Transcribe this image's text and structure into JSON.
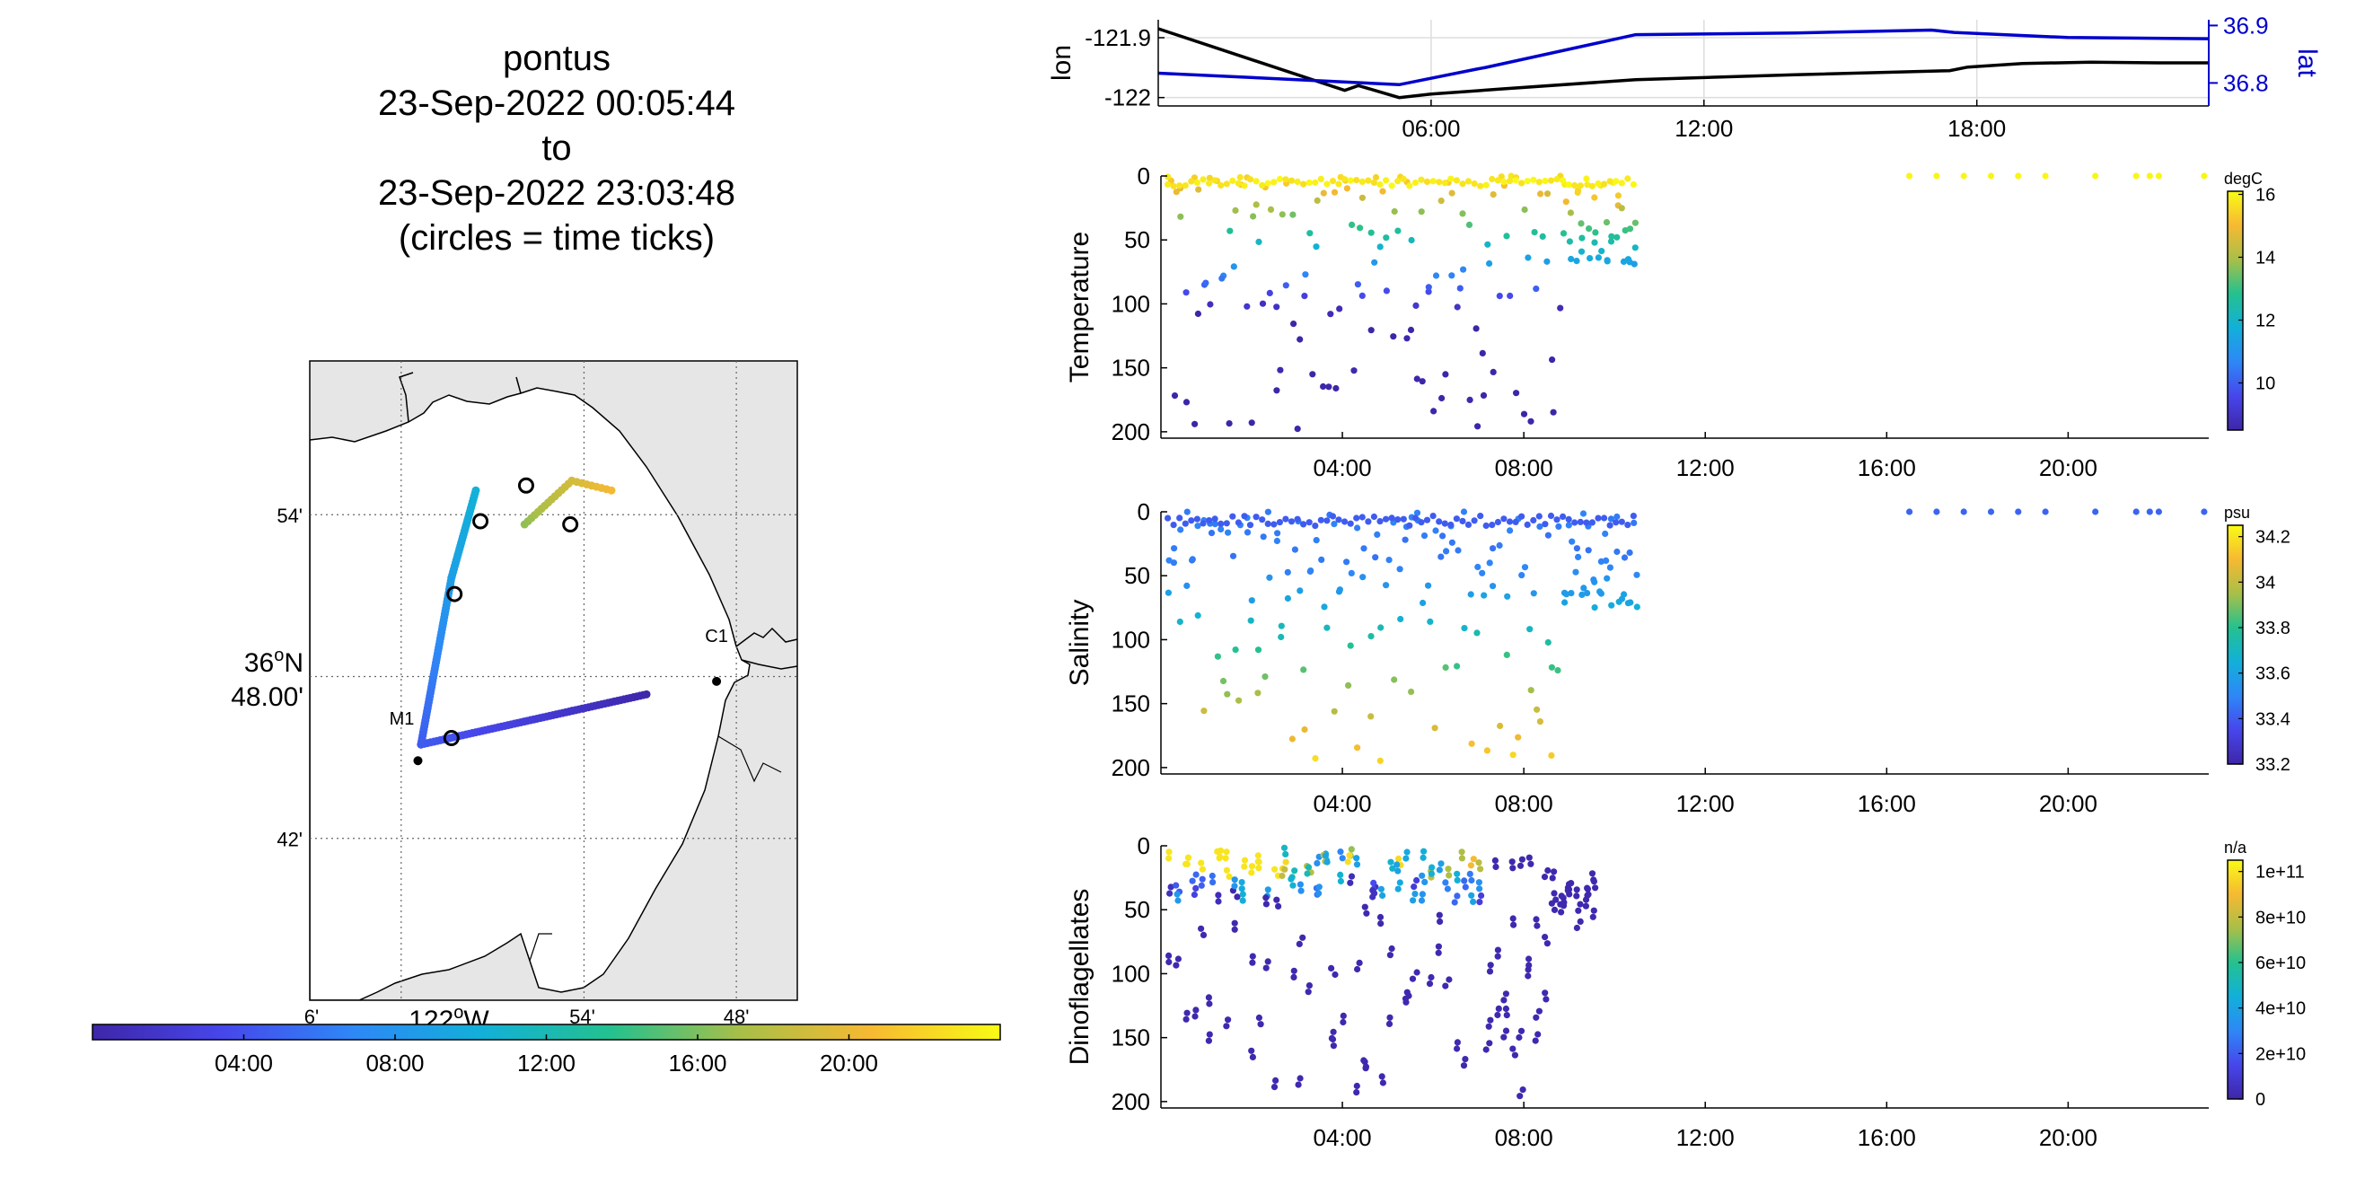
{
  "figure": {
    "title_lines": [
      "pontus",
      "23-Sep-2022 00:05:44",
      "to",
      "23-Sep-2022 23:03:48",
      "(circles = time ticks)"
    ]
  },
  "colors": {
    "lon_line": "#000000",
    "lat_line": "#0000cc",
    "land": "#e6e6e6",
    "colormap": [
      "#3e26a8",
      "#4746eb",
      "#2e87f7",
      "#12b0d9",
      "#24c18f",
      "#a8bf48",
      "#f6b932",
      "#f9fb15"
    ]
  },
  "chart_data": [
    {
      "id": "map",
      "type": "scatter",
      "title": "",
      "ylabel_parts": {
        "deg": "36",
        "sup": "o",
        "hem": "N",
        "min": "48.00'"
      },
      "xlabel_parts": {
        "deg": "122",
        "sup": "o",
        "hem": "W"
      },
      "yticks": [
        "54'",
        "42'"
      ],
      "xticks": [
        "6'",
        "54'",
        "48'"
      ],
      "xlim": [
        -122.1,
        -121.78
      ],
      "ylim": [
        36.6,
        36.995
      ],
      "grid": true,
      "moorings": [
        {
          "label": "M1",
          "lon": -122.029,
          "lat": 36.748
        },
        {
          "label": "C1",
          "lon": -121.833,
          "lat": 36.797
        }
      ],
      "track_points": [
        {
          "lon": -122.027,
          "lat": 36.758,
          "t": 4.5
        },
        {
          "lon": -122.007,
          "lat": 36.861,
          "t": 8.8
        },
        {
          "lon": -121.991,
          "lat": 36.915,
          "t": 10.1
        },
        {
          "lon": -121.959,
          "lat": 36.894,
          "t": 16.5
        },
        {
          "lon": -121.879,
          "lat": 36.789,
          "t": 1.5
        },
        {
          "lon": -121.928,
          "lat": 36.921,
          "t": 19.0
        },
        {
          "lon": -121.902,
          "lat": 36.915,
          "t": 20.2
        }
      ],
      "time_tick_circles": [
        {
          "lon": -122.007,
          "lat": 36.762
        },
        {
          "lon": -122.005,
          "lat": 36.851
        },
        {
          "lon": -121.988,
          "lat": 36.896
        },
        {
          "lon": -121.958,
          "lat": 36.918
        },
        {
          "lon": -121.929,
          "lat": 36.894
        }
      ]
    },
    {
      "id": "time_colorbar",
      "type": "heatmap",
      "xlabel": "",
      "xlim": [
        0,
        24
      ],
      "xticks": [
        4,
        8,
        12,
        16,
        20
      ],
      "xtick_labels": [
        "04:00",
        "08:00",
        "12:00",
        "16:00",
        "20:00"
      ]
    },
    {
      "id": "navigation",
      "type": "line",
      "xlabel": "",
      "ylabel_left": "lon",
      "ylabel_right": "lat",
      "xlim": [
        0,
        23.1
      ],
      "xticks": [
        6,
        12,
        18
      ],
      "xtick_labels": [
        "06:00",
        "12:00",
        "18:00"
      ],
      "ylim_left": [
        -122.014,
        -121.87
      ],
      "yticks_left": [
        -122,
        -121.9
      ],
      "ytick_labels_left": [
        "-122",
        "-121.9"
      ],
      "ylim_right": [
        36.76,
        36.91
      ],
      "yticks_right": [
        36.8,
        36.9
      ],
      "ytick_labels_right": [
        "36.8",
        "36.9"
      ],
      "series": [
        {
          "axis": "left",
          "x": [
            0,
            4.1,
            4.4,
            5.3,
            6.0,
            7.5,
            10.5,
            14.0,
            17.4,
            17.8,
            19.0,
            20.5,
            22.0,
            23.1
          ],
          "y": [
            -121.885,
            -121.988,
            -121.98,
            -122.0,
            -121.994,
            -121.986,
            -121.97,
            -121.962,
            -121.955,
            -121.949,
            -121.943,
            -121.941,
            -121.942,
            -121.942
          ]
        },
        {
          "axis": "right",
          "x": [
            0,
            3.0,
            5.3,
            7.0,
            7.2,
            10.5,
            14.0,
            17.0,
            17.5,
            20.0,
            23.1
          ],
          "y": [
            36.817,
            36.806,
            36.797,
            36.824,
            36.827,
            36.884,
            36.887,
            36.892,
            36.888,
            36.879,
            36.877
          ]
        }
      ]
    },
    {
      "id": "temperature",
      "type": "scatter",
      "xlabel": "",
      "ylabel": "Temperature",
      "clabel": "degC",
      "xlim": [
        0,
        23.1
      ],
      "xticks": [
        4,
        8,
        12,
        16,
        20
      ],
      "xtick_labels": [
        "04:00",
        "08:00",
        "12:00",
        "16:00",
        "20:00"
      ],
      "ylim": [
        0,
        205
      ],
      "yticks": [
        0,
        50,
        100,
        150,
        200
      ],
      "clim": [
        8.5,
        16.1
      ],
      "cticks": [
        10,
        12,
        14,
        16
      ],
      "grid": false
    },
    {
      "id": "salinity",
      "type": "scatter",
      "xlabel": "",
      "ylabel": "Salinity",
      "clabel": "psu",
      "xlim": [
        0,
        23.1
      ],
      "xticks": [
        4,
        8,
        12,
        16,
        20
      ],
      "xtick_labels": [
        "04:00",
        "08:00",
        "12:00",
        "16:00",
        "20:00"
      ],
      "ylim": [
        0,
        205
      ],
      "yticks": [
        0,
        50,
        100,
        150,
        200
      ],
      "clim": [
        33.2,
        34.25
      ],
      "cticks": [
        33.2,
        33.4,
        33.6,
        33.8,
        34,
        34.2
      ],
      "grid": false
    },
    {
      "id": "dinoflagellates",
      "type": "scatter",
      "xlabel": "",
      "ylabel": "Dinoflagellates",
      "clabel": "n/a",
      "xlim": [
        0,
        23.1
      ],
      "xticks": [
        4,
        8,
        12,
        16,
        20
      ],
      "xtick_labels": [
        "04:00",
        "08:00",
        "12:00",
        "16:00",
        "20:00"
      ],
      "ylim": [
        0,
        205
      ],
      "yticks": [
        0,
        50,
        100,
        150,
        200
      ],
      "clim": [
        0,
        105000000000.0
      ],
      "cticks": [
        0,
        20000000000.0,
        40000000000.0,
        60000000000.0,
        80000000000.0,
        100000000000.0
      ],
      "ctick_labels": [
        "0",
        "2e+10",
        "4e+10",
        "6e+10",
        "8e+10",
        "1e+11"
      ],
      "grid": false
    }
  ]
}
